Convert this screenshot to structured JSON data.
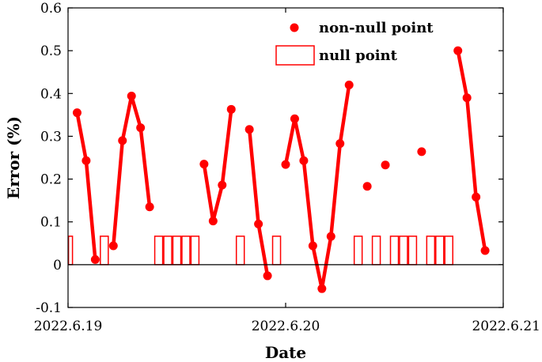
{
  "chart_data": {
    "type": "line",
    "xlabel": "Date",
    "ylabel": "Error (%)",
    "ylim": [
      -0.1,
      0.6
    ],
    "xlim": [
      "2022.6.19",
      "2022.6.21"
    ],
    "x_ticks": [
      "2022.6.19",
      "2022.6.20",
      "2022.6.21"
    ],
    "y_ticks": [
      -0.1,
      0,
      0.1,
      0.2,
      0.3,
      0.4,
      0.5,
      0.6
    ],
    "y_tick_labels": [
      "-0.1",
      "0",
      "0.1",
      "0.2",
      "0.3",
      "0.4",
      "0.5",
      "0.6"
    ],
    "grid": false,
    "box": true,
    "legend_placement": "top-right",
    "colors": {
      "series": "#ff0000",
      "axis": "#000000",
      "zero_line": "#000000"
    },
    "series": [
      {
        "name": "non-null point",
        "marker": "filled-circle",
        "segments": [
          [
            [
              "2022-06-19T01:00",
              0.355
            ],
            [
              "2022-06-19T02:00",
              0.243
            ],
            [
              "2022-06-19T03:00",
              0.012
            ]
          ],
          [
            [
              "2022-06-19T05:00",
              0.044
            ],
            [
              "2022-06-19T06:00",
              0.29
            ],
            [
              "2022-06-19T07:00",
              0.394
            ],
            [
              "2022-06-19T08:00",
              0.32
            ],
            [
              "2022-06-19T09:00",
              0.135
            ]
          ],
          [
            [
              "2022-06-19T15:00",
              0.235
            ],
            [
              "2022-06-19T16:00",
              0.102
            ],
            [
              "2022-06-19T17:00",
              0.186
            ],
            [
              "2022-06-19T18:00",
              0.363
            ]
          ],
          [
            [
              "2022-06-19T20:00",
              0.316
            ],
            [
              "2022-06-19T21:00",
              0.095
            ],
            [
              "2022-06-19T22:00",
              -0.026
            ]
          ],
          [
            [
              "2022-06-20T00:00",
              0.234
            ],
            [
              "2022-06-20T01:00",
              0.341
            ],
            [
              "2022-06-20T02:00",
              0.243
            ],
            [
              "2022-06-20T03:00",
              0.044
            ],
            [
              "2022-06-20T04:00",
              -0.056
            ],
            [
              "2022-06-20T05:00",
              0.066
            ],
            [
              "2022-06-20T06:00",
              0.283
            ],
            [
              "2022-06-20T07:00",
              0.42
            ]
          ],
          [
            [
              "2022-06-20T09:00",
              0.183
            ]
          ],
          [
            [
              "2022-06-20T11:00",
              0.233
            ]
          ],
          [
            [
              "2022-06-20T15:00",
              0.264
            ]
          ],
          [
            [
              "2022-06-20T19:00",
              0.5
            ],
            [
              "2022-06-20T20:00",
              0.39
            ],
            [
              "2022-06-20T21:00",
              0.158
            ],
            [
              "2022-06-20T22:00",
              0.033
            ]
          ]
        ]
      },
      {
        "name": "null point",
        "marker": "open-rectangle",
        "value": 0,
        "times": [
          "2022-06-19T00:00",
          "2022-06-19T04:00",
          "2022-06-19T10:00",
          "2022-06-19T11:00",
          "2022-06-19T12:00",
          "2022-06-19T13:00",
          "2022-06-19T14:00",
          "2022-06-19T19:00",
          "2022-06-19T23:00",
          "2022-06-20T08:00",
          "2022-06-20T10:00",
          "2022-06-20T12:00",
          "2022-06-20T13:00",
          "2022-06-20T14:00",
          "2022-06-20T16:00",
          "2022-06-20T17:00",
          "2022-06-20T18:00"
        ]
      }
    ]
  }
}
